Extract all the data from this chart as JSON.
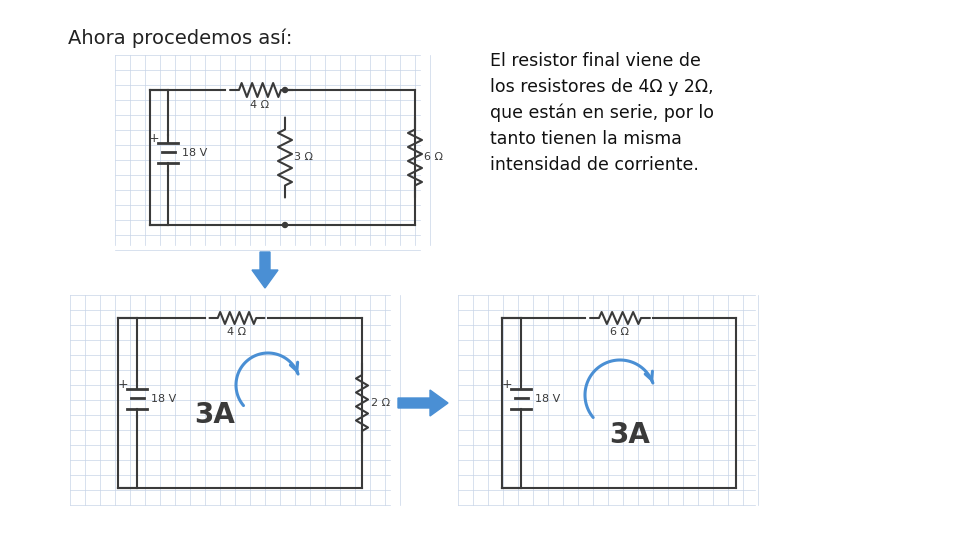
{
  "title": "Ahora procedemos así:",
  "title_fontsize": 14,
  "text_block": "El resistor final viene de\nlos resistores de 4Ω y 2Ω,\nque están en serie, por lo\ntanto tienen la misma\nintensidad de corriente.",
  "text_fontsize": 12.5,
  "background_color": "#ffffff",
  "grid_color": "#c8d4e8",
  "circuit_color": "#3a3a3a",
  "arrow_color": "#4a8fd4",
  "current_label": "3A",
  "current_fontsize": 20,
  "battery_voltage": "18 V",
  "r_top": "4 Ω",
  "r_mid": "3 Ω",
  "r_right1": "6 Ω",
  "r_series_top": "4 Ω",
  "r_series_right": "2 Ω",
  "r_final_top": "6 Ω"
}
